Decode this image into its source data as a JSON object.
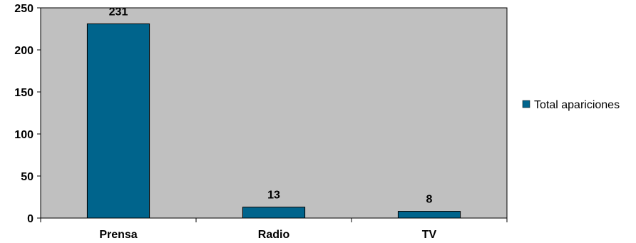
{
  "chart_data": {
    "type": "bar",
    "categories": [
      "Prensa",
      "Radio",
      "TV"
    ],
    "series": [
      {
        "name": "Total apariciones",
        "values": [
          231,
          13,
          8
        ]
      }
    ],
    "ylim": [
      0,
      250
    ],
    "yticks": [
      0,
      50,
      100,
      150,
      200,
      250
    ],
    "data_labels": true,
    "legend_position": "right",
    "grid": false,
    "colors": {
      "bar": "#00648c",
      "plot_background": "#c0c0c0",
      "axis": "#000000"
    }
  }
}
